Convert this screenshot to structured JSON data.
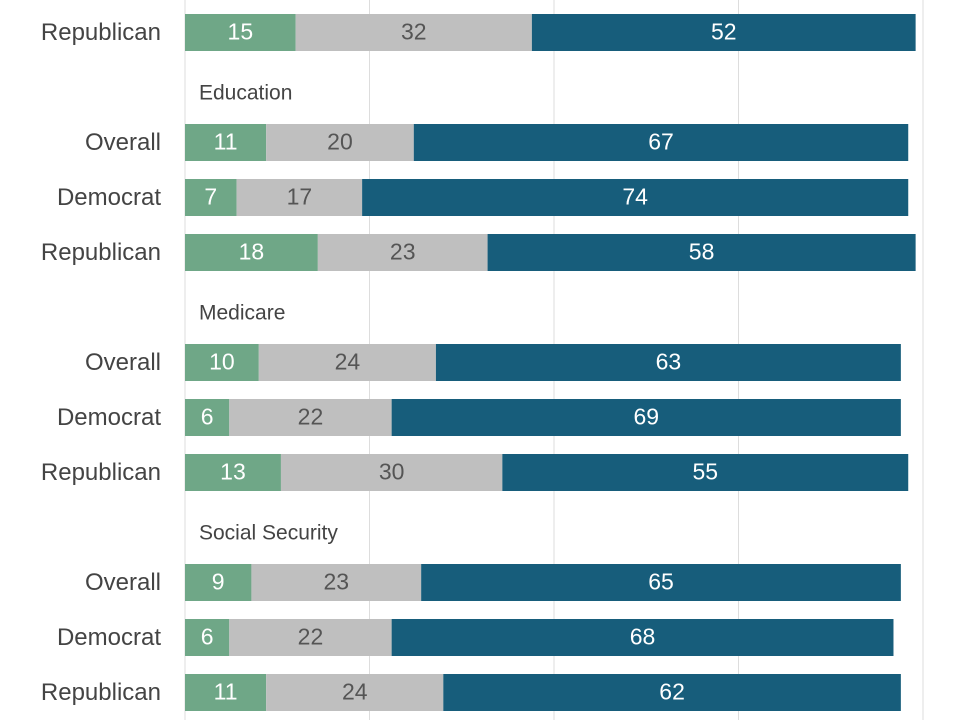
{
  "chart_data": {
    "type": "bar",
    "orientation": "horizontal",
    "stacked": true,
    "xlim": [
      0,
      100
    ],
    "grid": true,
    "colors": [
      "#6fa787",
      "#bfbfbf",
      "#175d7b"
    ],
    "label_colors": [
      "#ffffff",
      "#555555",
      "#ffffff"
    ],
    "groups": [
      {
        "title": "",
        "rows": [
          {
            "label": "Republican",
            "values": [
              15,
              32,
              52
            ]
          }
        ]
      },
      {
        "title": "Education",
        "rows": [
          {
            "label": "Overall",
            "values": [
              11,
              20,
              67
            ]
          },
          {
            "label": "Democrat",
            "values": [
              7,
              17,
              74
            ]
          },
          {
            "label": "Republican",
            "values": [
              18,
              23,
              58
            ]
          }
        ]
      },
      {
        "title": "Medicare",
        "rows": [
          {
            "label": "Overall",
            "values": [
              10,
              24,
              63
            ]
          },
          {
            "label": "Democrat",
            "values": [
              6,
              22,
              69
            ]
          },
          {
            "label": "Republican",
            "values": [
              13,
              30,
              55
            ]
          }
        ]
      },
      {
        "title": "Social Security",
        "rows": [
          {
            "label": "Overall",
            "values": [
              9,
              23,
              65
            ]
          },
          {
            "label": "Democrat",
            "values": [
              6,
              22,
              68
            ]
          },
          {
            "label": "Republican",
            "values": [
              11,
              24,
              62
            ]
          }
        ]
      }
    ]
  }
}
